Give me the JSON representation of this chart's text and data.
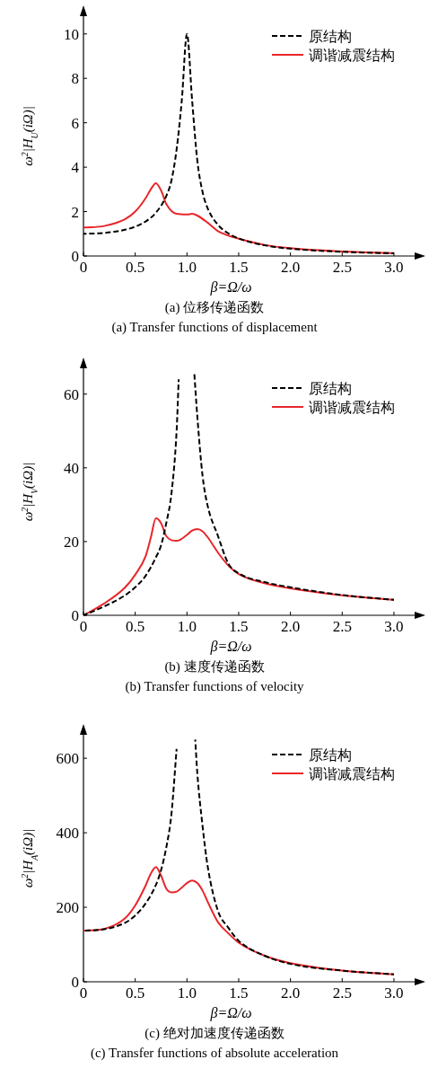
{
  "chart_data": [
    {
      "type": "line",
      "title": "(a) 位移传递函数",
      "subtitle": "(a) Transfer functions of displacement",
      "xlabel": "β=Ω/ω",
      "ylabel": "ω$^{2}$|H$_{U}$(iΩ)|",
      "xlim": [
        0,
        3.2
      ],
      "xticks": [
        0,
        0.5,
        {
          "value": 1,
          "label": "1.0"
        },
        1.5,
        {
          "value": 2,
          "label": "2.0"
        },
        2.5,
        {
          "value": 3,
          "label": "3.0"
        }
      ],
      "ylim": [
        0,
        10.8
      ],
      "yticks": [
        0,
        2,
        4,
        6,
        8,
        10
      ],
      "grid": false,
      "legend": "top right",
      "series": [
        {
          "name": "原结构",
          "color": "#000000",
          "line_style": "dashed",
          "x": [
            0,
            0.2,
            0.4,
            0.5,
            0.6,
            0.7,
            0.8,
            0.85,
            0.9,
            0.95,
            1.0,
            1.05,
            1.1,
            1.15,
            1.2,
            1.3,
            1.4,
            1.5,
            1.75,
            2.0,
            2.5,
            3.0
          ],
          "values": [
            1.0,
            1.04,
            1.18,
            1.32,
            1.55,
            1.95,
            2.7,
            3.4,
            4.8,
            7.0,
            10.0,
            7.0,
            4.3,
            2.9,
            2.15,
            1.4,
            1.02,
            0.79,
            0.48,
            0.33,
            0.19,
            0.12
          ]
        },
        {
          "name": "调谐减震结构",
          "color": "#e8262a",
          "line_style": "solid",
          "x": [
            0,
            0.2,
            0.4,
            0.5,
            0.6,
            0.65,
            0.7,
            0.75,
            0.8,
            0.9,
            1.0,
            1.05,
            1.1,
            1.2,
            1.3,
            1.4,
            1.5,
            1.75,
            2.0,
            2.5,
            3.0
          ],
          "values": [
            1.28,
            1.35,
            1.65,
            2.0,
            2.6,
            3.0,
            3.28,
            2.95,
            2.35,
            1.9,
            1.87,
            1.9,
            1.82,
            1.5,
            1.12,
            0.92,
            0.78,
            0.5,
            0.35,
            0.2,
            0.13
          ]
        }
      ]
    },
    {
      "type": "line",
      "title": "(b) 速度传递函数",
      "subtitle": "(b) Transfer functions of velocity",
      "xlabel": "β=Ω/ω",
      "ylabel": "ω$^{2}$|H$_{V}$(iΩ)|",
      "xlim": [
        0,
        3.2
      ],
      "xticks": [
        0,
        0.5,
        {
          "value": 1,
          "label": "1.0"
        },
        1.5,
        {
          "value": 2,
          "label": "2.0"
        },
        2.5,
        {
          "value": 3,
          "label": "3.0"
        }
      ],
      "ylim": [
        0,
        67
      ],
      "yticks": [
        0,
        20,
        40,
        60
      ],
      "grid": false,
      "legend": "top right",
      "series": [
        {
          "name": "原结构",
          "color": "#000000",
          "line_style": "dashed",
          "x": [
            0,
            0.2,
            0.4,
            0.5,
            0.6,
            0.7,
            0.75,
            0.8,
            0.85,
            0.9,
            0.92
          ],
          "values": [
            0,
            2.4,
            5.4,
            7.6,
            10.7,
            15.7,
            19,
            25,
            33,
            50,
            64
          ]
        },
        {
          "color": "#000000",
          "line_style": "dashed",
          "x": [
            1.07,
            1.1,
            1.15,
            1.2,
            1.3,
            1.4,
            1.5,
            1.75,
            2.0,
            2.5,
            3.0
          ],
          "values": [
            66,
            54,
            38,
            29.7,
            21.5,
            14,
            11.4,
            9,
            7.6,
            5.5,
            4.2
          ]
        },
        {
          "name": "调谐减震结构",
          "color": "#e8262a",
          "line_style": "solid",
          "x": [
            0,
            0.2,
            0.4,
            0.5,
            0.6,
            0.65,
            0.7,
            0.75,
            0.8,
            0.9,
            1.0,
            1.05,
            1.1,
            1.15,
            1.2,
            1.3,
            1.4,
            1.5,
            1.75,
            2.0,
            2.5,
            3.0
          ],
          "values": [
            0,
            3.2,
            7.5,
            11,
            16,
            21,
            26.3,
            25,
            21.5,
            20.2,
            21.8,
            23,
            23.4,
            22.8,
            21.2,
            17.0,
            13.5,
            11.2,
            8.7,
            7.3,
            5.4,
            4.2
          ]
        }
      ]
    },
    {
      "type": "line",
      "title": "(c) 绝对加速度传递函数",
      "subtitle": "(c) Transfer functions of absolute acceleration",
      "xlabel": "β=Ω/ω",
      "ylabel": "ω$^{2}$|H$_{A}$(iΩ)|",
      "xlim": [
        0,
        3.2
      ],
      "xticks": [
        0,
        0.5,
        {
          "value": 1,
          "label": "1.0"
        },
        1.5,
        {
          "value": 2,
          "label": "2.0"
        },
        2.5,
        {
          "value": 3,
          "label": "3.0"
        }
      ],
      "ylim": [
        0,
        663
      ],
      "yticks": [
        0,
        200,
        400,
        600
      ],
      "grid": false,
      "legend": "top right",
      "series": [
        {
          "name": "原结构",
          "color": "#000000",
          "line_style": "dashed",
          "x": [
            0,
            0.2,
            0.4,
            0.5,
            0.6,
            0.7,
            0.75,
            0.8,
            0.85,
            0.9
          ],
          "values": [
            137,
            141,
            158,
            178,
            210,
            260,
            300,
            360,
            450,
            625
          ]
        },
        {
          "color": "#000000",
          "line_style": "dashed",
          "x": [
            1.08,
            1.1,
            1.15,
            1.2,
            1.3,
            1.4,
            1.5,
            1.75,
            2.0,
            2.5,
            3.0
          ],
          "values": [
            650,
            560,
            420,
            310,
            190,
            145,
            110,
            70,
            48,
            30,
            20
          ]
        },
        {
          "name": "调谐减震结构",
          "color": "#e8262a",
          "line_style": "solid",
          "x": [
            0,
            0.2,
            0.4,
            0.5,
            0.6,
            0.65,
            0.7,
            0.75,
            0.8,
            0.85,
            0.9,
            1.0,
            1.05,
            1.1,
            1.15,
            1.2,
            1.3,
            1.4,
            1.5,
            1.75,
            2.0,
            2.5,
            3.0
          ],
          "values": [
            137,
            142,
            170,
            205,
            258,
            290,
            308,
            285,
            250,
            240,
            242,
            265,
            272,
            265,
            245,
            215,
            160,
            130,
            105,
            70,
            50,
            30,
            20
          ]
        }
      ]
    }
  ]
}
